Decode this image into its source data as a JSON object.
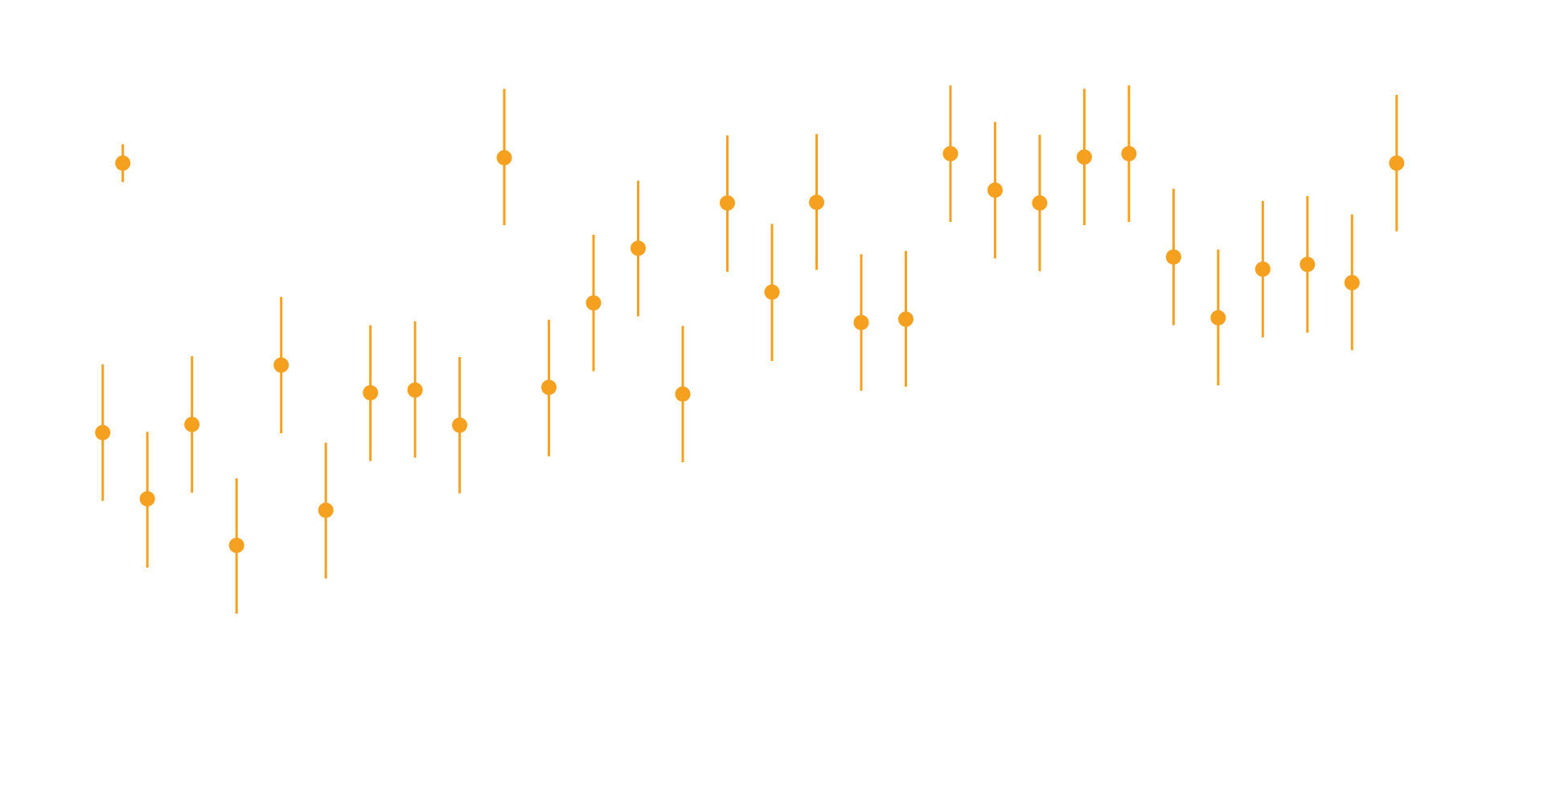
{
  "chart_data": {
    "type": "scatter",
    "title": "",
    "xlabel": "",
    "ylabel": "",
    "xlim": [
      -0.5,
      30.5
    ],
    "ylim": [
      0,
      1
    ],
    "grid": false,
    "legend": false,
    "colors": {
      "series": "#F5A01F",
      "background": "#ffffff"
    },
    "series": [
      {
        "points": [
          {
            "x": 0,
            "y": 0.419,
            "lo": 0.318,
            "hi": 0.52
          },
          {
            "x": 1,
            "y": 0.321,
            "lo": 0.219,
            "hi": 0.42
          },
          {
            "x": 2,
            "y": 0.431,
            "lo": 0.33,
            "hi": 0.532
          },
          {
            "x": 3,
            "y": 0.252,
            "lo": 0.151,
            "hi": 0.351
          },
          {
            "x": 4,
            "y": 0.519,
            "lo": 0.418,
            "hi": 0.62
          },
          {
            "x": 5,
            "y": 0.304,
            "lo": 0.203,
            "hi": 0.404
          },
          {
            "x": 6,
            "y": 0.478,
            "lo": 0.377,
            "hi": 0.578
          },
          {
            "x": 7,
            "y": 0.482,
            "lo": 0.382,
            "hi": 0.584
          },
          {
            "x": 8,
            "y": 0.43,
            "lo": 0.329,
            "hi": 0.531
          },
          {
            "x": 9,
            "y": 0.826,
            "lo": 0.726,
            "hi": 0.928
          },
          {
            "x": 10,
            "y": 0.486,
            "lo": 0.384,
            "hi": 0.586
          },
          {
            "x": 11,
            "y": 0.611,
            "lo": 0.51,
            "hi": 0.712
          },
          {
            "x": 12,
            "y": 0.692,
            "lo": 0.591,
            "hi": 0.792
          },
          {
            "x": 13,
            "y": 0.476,
            "lo": 0.375,
            "hi": 0.577
          },
          {
            "x": 14,
            "y": 0.759,
            "lo": 0.657,
            "hi": 0.859
          },
          {
            "x": 15,
            "y": 0.627,
            "lo": 0.525,
            "hi": 0.728
          },
          {
            "x": 16,
            "y": 0.76,
            "lo": 0.66,
            "hi": 0.861
          },
          {
            "x": 17,
            "y": 0.582,
            "lo": 0.481,
            "hi": 0.683
          },
          {
            "x": 18,
            "y": 0.587,
            "lo": 0.487,
            "hi": 0.688
          },
          {
            "x": 19,
            "y": 0.832,
            "lo": 0.731,
            "hi": 0.933
          },
          {
            "x": 20,
            "y": 0.778,
            "lo": 0.677,
            "hi": 0.879
          },
          {
            "x": 21,
            "y": 0.759,
            "lo": 0.658,
            "hi": 0.86
          },
          {
            "x": 22,
            "y": 0.827,
            "lo": 0.726,
            "hi": 0.928
          },
          {
            "x": 23,
            "y": 0.832,
            "lo": 0.731,
            "hi": 0.933
          },
          {
            "x": 24,
            "y": 0.679,
            "lo": 0.578,
            "hi": 0.78
          },
          {
            "x": 25,
            "y": 0.589,
            "lo": 0.489,
            "hi": 0.69
          },
          {
            "x": 26,
            "y": 0.661,
            "lo": 0.56,
            "hi": 0.762
          },
          {
            "x": 27,
            "y": 0.668,
            "lo": 0.567,
            "hi": 0.769
          },
          {
            "x": 28,
            "y": 0.641,
            "lo": 0.541,
            "hi": 0.742
          },
          {
            "x": 29,
            "y": 0.818,
            "lo": 0.717,
            "hi": 0.919
          }
        ]
      }
    ],
    "extra_marks": [
      {
        "x": 0.45,
        "y": 0.818,
        "lo": 0.79,
        "hi": 0.846
      }
    ]
  }
}
